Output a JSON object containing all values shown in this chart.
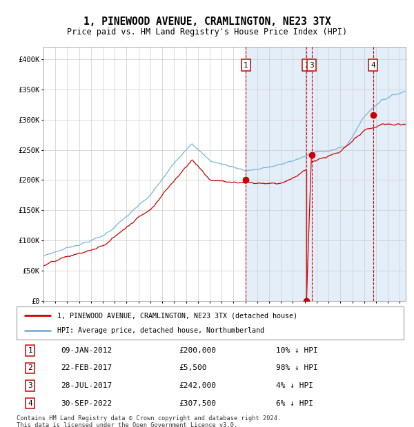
{
  "title": "1, PINEWOOD AVENUE, CRAMLINGTON, NE23 3TX",
  "subtitle": "Price paid vs. HM Land Registry's House Price Index (HPI)",
  "hpi_color": "#7ab3d8",
  "price_color": "#cc0000",
  "ylim": [
    0,
    420000
  ],
  "yticks": [
    0,
    50000,
    100000,
    150000,
    200000,
    250000,
    300000,
    350000,
    400000
  ],
  "ytick_labels": [
    "£0",
    "£50K",
    "£100K",
    "£150K",
    "£200K",
    "£250K",
    "£300K",
    "£350K",
    "£400K"
  ],
  "transactions": [
    {
      "num": 1,
      "date": "09-JAN-2012",
      "date_decimal": 2012.03,
      "price": 200000,
      "pct": "10%",
      "marker_y": 200000
    },
    {
      "num": 2,
      "date": "22-FEB-2017",
      "date_decimal": 2017.14,
      "price": 5500,
      "pct": "98%",
      "marker_y": 0
    },
    {
      "num": 3,
      "date": "28-JUL-2017",
      "date_decimal": 2017.57,
      "price": 242000,
      "pct": "4%",
      "marker_y": 242000
    },
    {
      "num": 4,
      "date": "30-SEP-2022",
      "date_decimal": 2022.75,
      "price": 307500,
      "pct": "6%",
      "marker_y": 307500
    }
  ],
  "legend_line1": "1, PINEWOOD AVENUE, CRAMLINGTON, NE23 3TX (detached house)",
  "legend_line2": "HPI: Average price, detached house, Northumberland",
  "footer": "Contains HM Land Registry data © Crown copyright and database right 2024.\nThis data is licensed under the Open Government Licence v3.0.",
  "xmin": 1995.0,
  "xmax": 2025.5,
  "shade_start": 2012.03,
  "table_rows": [
    [
      "1",
      "09-JAN-2012",
      "£200,000",
      "10% ↓ HPI"
    ],
    [
      "2",
      "22-FEB-2017",
      "£5,500",
      "98% ↓ HPI"
    ],
    [
      "3",
      "28-JUL-2017",
      "£242,000",
      "4% ↓ HPI"
    ],
    [
      "4",
      "30-SEP-2022",
      "£307,500",
      "6% ↓ HPI"
    ]
  ]
}
